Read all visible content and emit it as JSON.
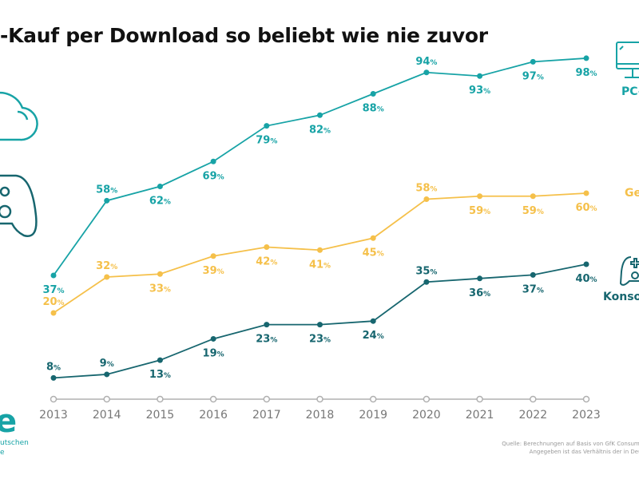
{
  "title": "-Kauf per Download so beliebt wie nie zuvor",
  "chart_data": {
    "type": "line",
    "x": [
      "2013",
      "2014",
      "2015",
      "2016",
      "2017",
      "2018",
      "2019",
      "2020",
      "2021",
      "2022",
      "2023"
    ],
    "series": [
      {
        "name": "PC-",
        "color": "#17a3a6",
        "values": [
          37,
          58,
          62,
          69,
          79,
          82,
          88,
          94,
          93,
          97,
          98
        ]
      },
      {
        "name": "Ge",
        "color": "#f5c04a",
        "values": [
          20,
          32,
          33,
          39,
          42,
          41,
          45,
          58,
          59,
          59,
          60
        ]
      },
      {
        "name": "Konsol",
        "color": "#17666f",
        "values": [
          8,
          9,
          13,
          19,
          23,
          23,
          24,
          35,
          36,
          37,
          40
        ]
      }
    ],
    "value_suffix": "%",
    "grid": false,
    "axis_color": "#b0b0b0"
  },
  "side_labels": {
    "pc": "PC-",
    "games": "Ge",
    "console": "Konsol"
  },
  "icons": [
    "cloud-icon",
    "gamepad-icon",
    "monitor-icon",
    "gamepad-icon"
  ],
  "logo": {
    "letter": "e",
    "line1": "utschen",
    "line2": "e"
  },
  "source": {
    "line1": "Quelle: Berechnungen auf Basis von GfK Consumer Panel Se",
    "line2": "Angegeben ist das Verhältnis der in Deutschland g"
  }
}
